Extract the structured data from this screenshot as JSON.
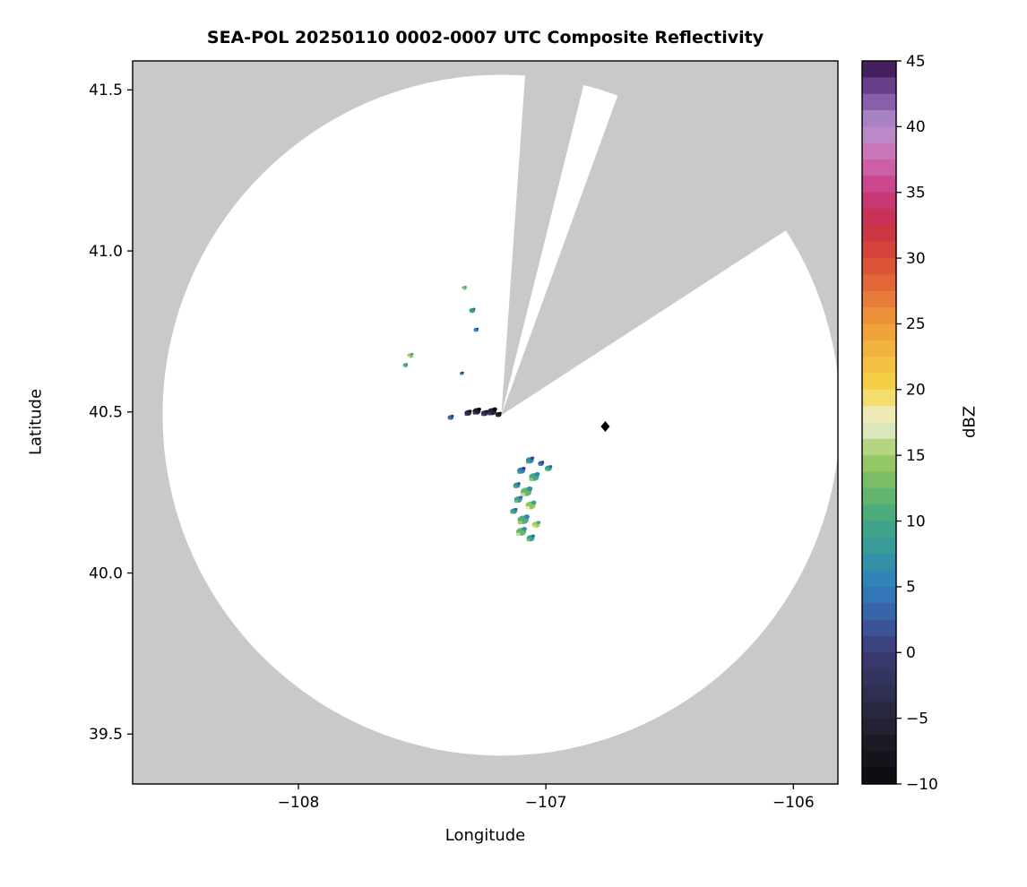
{
  "chart_data": {
    "type": "heatmap",
    "subtype": "radar-composite-reflectivity",
    "title": "SEA-POL 20250110 0002-0007 UTC Composite Reflectivity",
    "xlabel": "Longitude",
    "ylabel": "Latitude",
    "xlim": [
      -108.67,
      -105.82
    ],
    "ylim": [
      39.345,
      41.59
    ],
    "xticks": [
      {
        "value": -108,
        "label": "−108"
      },
      {
        "value": -107,
        "label": "−107"
      },
      {
        "value": -106,
        "label": "−106"
      }
    ],
    "yticks": [
      {
        "value": 39.5,
        "label": "39.5"
      },
      {
        "value": 40.0,
        "label": "40.0"
      },
      {
        "value": 40.5,
        "label": "40.5"
      },
      {
        "value": 41.0,
        "label": "41.0"
      },
      {
        "value": 41.5,
        "label": "41.5"
      }
    ],
    "grid": false,
    "nodata_color": "#c9c9c9",
    "coverage_color": "#ffffff",
    "radar": {
      "lon": -107.18,
      "lat": 40.49,
      "range_radius_deg_lon": 1.369,
      "range_radius_deg_lat": 1.057
    },
    "blocked_sectors_deg_from_north": [
      [
        4,
        14
      ],
      [
        20,
        57
      ]
    ],
    "marker": {
      "shape": "diamond",
      "color": "#000000",
      "lon": -106.76,
      "lat": 40.455
    },
    "colorbar": {
      "label": "dBZ",
      "min": -10,
      "max": 45,
      "ticks": [
        {
          "value": -10,
          "label": "−10"
        },
        {
          "value": -5,
          "label": "−5"
        },
        {
          "value": 0,
          "label": "0"
        },
        {
          "value": 5,
          "label": "5"
        },
        {
          "value": 10,
          "label": "10"
        },
        {
          "value": 15,
          "label": "15"
        },
        {
          "value": 20,
          "label": "20"
        },
        {
          "value": 25,
          "label": "25"
        },
        {
          "value": 30,
          "label": "30"
        },
        {
          "value": 35,
          "label": "35"
        },
        {
          "value": 40,
          "label": "40"
        },
        {
          "value": 45,
          "label": "45"
        }
      ],
      "color_stops": [
        [
          -10,
          "#0a0a10"
        ],
        [
          -7.5,
          "#17171f"
        ],
        [
          -5,
          "#252538"
        ],
        [
          -2.5,
          "#32325a"
        ],
        [
          0,
          "#3a3a73"
        ],
        [
          2.5,
          "#3b5ba3"
        ],
        [
          5,
          "#2f7fbe"
        ],
        [
          7.5,
          "#35969f"
        ],
        [
          10,
          "#43a883"
        ],
        [
          12.5,
          "#6cb868"
        ],
        [
          15,
          "#a3cc63"
        ],
        [
          17.5,
          "#eef0d8"
        ],
        [
          20,
          "#f5d74a"
        ],
        [
          22.5,
          "#f3b93f"
        ],
        [
          25,
          "#ef9b3a"
        ],
        [
          27.5,
          "#e4713a"
        ],
        [
          30,
          "#d84a35"
        ],
        [
          32.5,
          "#c62f48"
        ],
        [
          35,
          "#c93a80"
        ],
        [
          37.5,
          "#cd6bb2"
        ],
        [
          40,
          "#b792ce"
        ],
        [
          42.5,
          "#7a4e9e"
        ],
        [
          45,
          "#311048"
        ]
      ]
    },
    "echoes": [
      {
        "lon": -107.385,
        "lat": 40.483,
        "dbz": 3,
        "size": 5
      },
      {
        "lon": -107.315,
        "lat": 40.497,
        "dbz": -4,
        "size": 6
      },
      {
        "lon": -107.28,
        "lat": 40.502,
        "dbz": -6,
        "size": 7
      },
      {
        "lon": -107.248,
        "lat": 40.496,
        "dbz": -3,
        "size": 6
      },
      {
        "lon": -107.218,
        "lat": 40.501,
        "dbz": -5,
        "size": 8
      },
      {
        "lon": -107.192,
        "lat": 40.492,
        "dbz": -7,
        "size": 5
      },
      {
        "lon": -107.065,
        "lat": 40.35,
        "dbz": 6,
        "size": 7
      },
      {
        "lon": -107.02,
        "lat": 40.34,
        "dbz": 3,
        "size": 5
      },
      {
        "lon": -106.99,
        "lat": 40.325,
        "dbz": 8,
        "size": 6
      },
      {
        "lon": -107.1,
        "lat": 40.318,
        "dbz": 5,
        "size": 7
      },
      {
        "lon": -107.048,
        "lat": 40.298,
        "dbz": 10,
        "size": 9
      },
      {
        "lon": -107.118,
        "lat": 40.272,
        "dbz": 7,
        "size": 6
      },
      {
        "lon": -107.08,
        "lat": 40.252,
        "dbz": 12,
        "size": 10
      },
      {
        "lon": -107.112,
        "lat": 40.228,
        "dbz": 9,
        "size": 7
      },
      {
        "lon": -107.062,
        "lat": 40.21,
        "dbz": 14,
        "size": 9
      },
      {
        "lon": -107.13,
        "lat": 40.192,
        "dbz": 8,
        "size": 6
      },
      {
        "lon": -107.092,
        "lat": 40.165,
        "dbz": 11,
        "size": 10
      },
      {
        "lon": -107.04,
        "lat": 40.15,
        "dbz": 15,
        "size": 7
      },
      {
        "lon": -107.1,
        "lat": 40.128,
        "dbz": 12,
        "size": 9
      },
      {
        "lon": -107.062,
        "lat": 40.108,
        "dbz": 9,
        "size": 7
      },
      {
        "lon": -107.33,
        "lat": 40.885,
        "dbz": 13,
        "size": 4
      },
      {
        "lon": -107.298,
        "lat": 40.815,
        "dbz": 8,
        "size": 5
      },
      {
        "lon": -107.282,
        "lat": 40.755,
        "dbz": 5,
        "size": 4
      },
      {
        "lon": -107.548,
        "lat": 40.675,
        "dbz": 14,
        "size": 5
      },
      {
        "lon": -107.568,
        "lat": 40.645,
        "dbz": 10,
        "size": 4
      },
      {
        "lon": -107.34,
        "lat": 40.62,
        "dbz": 3,
        "size": 3
      }
    ]
  }
}
